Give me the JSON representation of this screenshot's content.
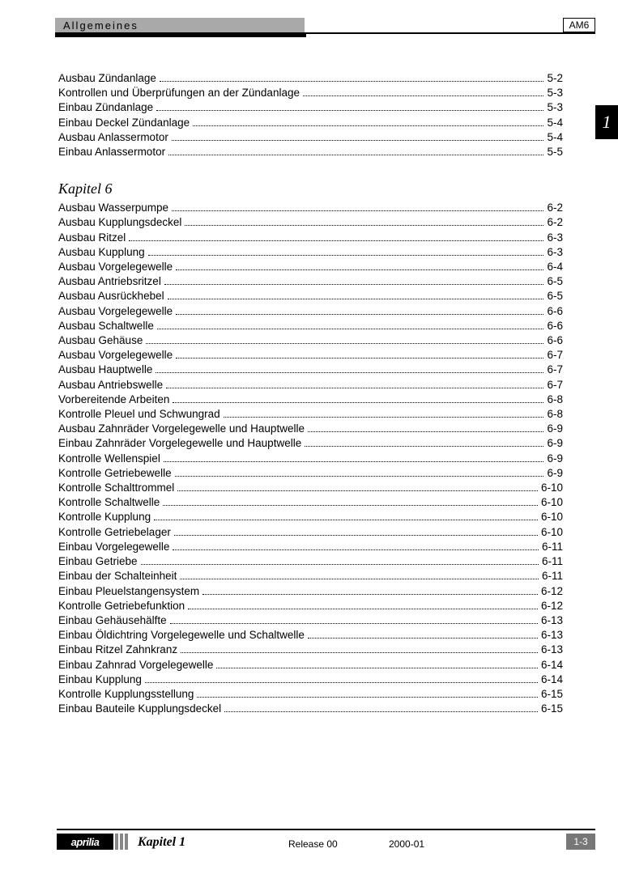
{
  "header": {
    "section_title": "Allgemeines",
    "code": "AM6"
  },
  "side_tab": "1",
  "sections": [
    {
      "title": null,
      "entries": [
        {
          "label": "Ausbau Zündanlage",
          "page": "5-2"
        },
        {
          "label": "Kontrollen und Überprüfungen an der Zündanlage",
          "page": "5-3"
        },
        {
          "label": "Einbau Zündanlage",
          "page": "5-3"
        },
        {
          "label": "Einbau Deckel Zündanlage",
          "page": "5-4"
        },
        {
          "label": "Ausbau Anlassermotor",
          "page": "5-4"
        },
        {
          "label": "Einbau Anlassermotor",
          "page": "5-5"
        }
      ]
    },
    {
      "title": "Kapitel 6",
      "entries": [
        {
          "label": "Ausbau Wasserpumpe",
          "page": "6-2"
        },
        {
          "label": "Ausbau Kupplungsdeckel",
          "page": "6-2"
        },
        {
          "label": "Ausbau Ritzel",
          "page": "6-3"
        },
        {
          "label": "Ausbau Kupplung",
          "page": "6-3"
        },
        {
          "label": "Ausbau Vorgelegewelle",
          "page": "6-4"
        },
        {
          "label": "Ausbau Antriebsritzel",
          "page": "6-5"
        },
        {
          "label": "Ausbau Ausrückhebel",
          "page": "6-5"
        },
        {
          "label": "Ausbau Vorgelegewelle",
          "page": "6-6"
        },
        {
          "label": "Ausbau Schaltwelle",
          "page": "6-6"
        },
        {
          "label": "Ausbau Gehäuse",
          "page": "6-6"
        },
        {
          "label": "Ausbau Vorgelegewelle",
          "page": "6-7"
        },
        {
          "label": "Ausbau Hauptwelle",
          "page": "6-7"
        },
        {
          "label": "Ausbau Antriebswelle",
          "page": "6-7"
        },
        {
          "label": "Vorbereitende Arbeiten",
          "page": "6-8"
        },
        {
          "label": "Kontrolle Pleuel und Schwungrad",
          "page": "6-8"
        },
        {
          "label": "Ausbau Zahnräder Vorgelegewelle und Hauptwelle",
          "page": "6-9"
        },
        {
          "label": "Einbau Zahnräder Vorgelegewelle und Hauptwelle",
          "page": "6-9"
        },
        {
          "label": "Kontrolle Wellenspiel",
          "page": "6-9"
        },
        {
          "label": "Kontrolle Getriebewelle",
          "page": "6-9"
        },
        {
          "label": "Kontrolle Schalttrommel",
          "page": "6-10"
        },
        {
          "label": "Kontrolle Schaltwelle",
          "page": "6-10"
        },
        {
          "label": "Kontrolle Kupplung",
          "page": "6-10"
        },
        {
          "label": "Kontrolle Getriebelager",
          "page": "6-10"
        },
        {
          "label": "Einbau Vorgelegewelle",
          "page": "6-11"
        },
        {
          "label": "Einbau Getriebe",
          "page": "6-11"
        },
        {
          "label": "Einbau der Schalteinheit",
          "page": "6-11"
        },
        {
          "label": "Einbau Pleuelstangensystem",
          "page": "6-12"
        },
        {
          "label": "Kontrolle Getriebefunktion",
          "page": "6-12"
        },
        {
          "label": "Einbau Gehäusehälfte",
          "page": "6-13"
        },
        {
          "label": "Einbau Öldichtring Vorgelegewelle und Schaltwelle",
          "page": "6-13"
        },
        {
          "label": "Einbau Ritzel Zahnkranz",
          "page": "6-13"
        },
        {
          "label": "Einbau Zahnrad Vorgelegewelle",
          "page": "6-14"
        },
        {
          "label": "Einbau Kupplung",
          "page": "6-14"
        },
        {
          "label": "Kontrolle Kupplungsstellung",
          "page": "6-15"
        },
        {
          "label": "Einbau Bauteile Kupplungsdeckel",
          "page": "6-15"
        }
      ]
    }
  ],
  "footer": {
    "logo": "aprilia",
    "chapter": "Kapitel 1",
    "release": "Release 00",
    "date": "2000-01",
    "page_number": "1-3"
  }
}
